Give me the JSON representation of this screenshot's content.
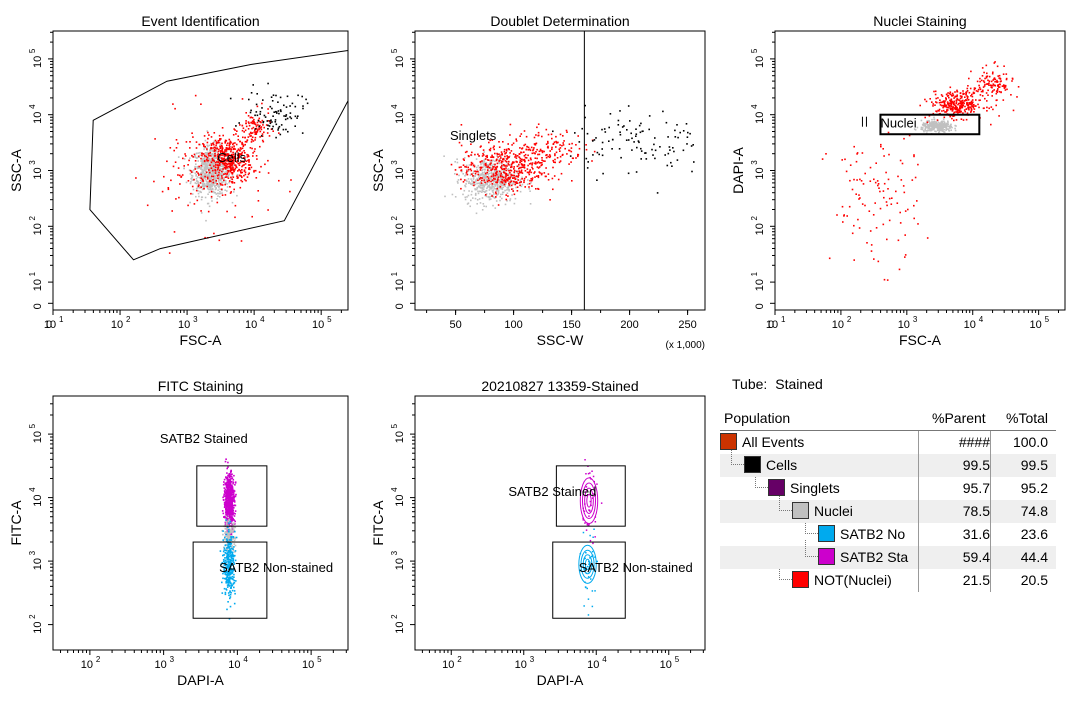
{
  "chart_data": [
    {
      "id": "p1",
      "type": "scatter",
      "title": "Event Identification",
      "xlabel": "FSC-A",
      "ylabel": "SSC-A",
      "xscale": "log",
      "yscale": "log",
      "xlim": [
        1,
        5.4
      ],
      "ylim": [
        0.5,
        5.5
      ],
      "xticks": [
        "0",
        "10",
        "10",
        "10",
        "10",
        "10"
      ],
      "xtick_exp": [
        "",
        "1",
        "2",
        "3",
        "4",
        "5"
      ],
      "yticks": [
        "0",
        "10",
        "10",
        "10",
        "10",
        "10"
      ],
      "ytick_exp": [
        "",
        "1",
        "2",
        "3",
        "4",
        "5"
      ],
      "gates": [
        {
          "name": "Cells",
          "shape": "polygon",
          "color": "#000000",
          "vertices": [
            [
              1.6,
              3.9
            ],
            [
              2.7,
              4.6
            ],
            [
              3.95,
              4.9
            ],
            [
              5.4,
              5.15
            ],
            [
              5.4,
              4.25
            ],
            [
              4.45,
              2.1
            ],
            [
              2.6,
              1.6
            ],
            [
              2.2,
              1.4
            ],
            [
              1.55,
              2.3
            ]
          ]
        }
      ],
      "clusters": [
        {
          "color": "#c0c0c0",
          "cx": 3.35,
          "cy": 3.0,
          "sx": 0.14,
          "sy": 0.22,
          "n": 700
        },
        {
          "color": "#ff0000",
          "cx": 3.6,
          "cy": 3.2,
          "sx": 0.18,
          "sy": 0.2,
          "n": 420
        },
        {
          "color": "#ff0000",
          "cx": 3.3,
          "cy": 3.0,
          "sx": 0.45,
          "sy": 0.5,
          "n": 150
        },
        {
          "color": "#ff0000",
          "cx": 4.0,
          "cy": 3.75,
          "sx": 0.12,
          "sy": 0.16,
          "n": 100
        },
        {
          "color": "#000000",
          "cx": 4.3,
          "cy": 4.05,
          "sx": 0.22,
          "sy": 0.2,
          "n": 90
        }
      ]
    },
    {
      "id": "p2",
      "type": "scatter",
      "title": "Doublet Determination",
      "xlabel": "SSC-W",
      "ylabel": "SSC-A",
      "xscale": "linear",
      "yscale": "log",
      "xlim": [
        15000,
        265000
      ],
      "ylim": [
        0.5,
        5.5
      ],
      "xnote": "(x 1,000)",
      "xticks": [
        "50",
        "100",
        "150",
        "200",
        "250"
      ],
      "yticks": [
        "0",
        "10",
        "10",
        "10",
        "10",
        "10"
      ],
      "ytick_exp": [
        "",
        "1",
        "2",
        "3",
        "4",
        "5"
      ],
      "gates": [
        {
          "name": "Singlets",
          "shape": "vline",
          "x": 161000,
          "color": "#000000"
        }
      ],
      "clusters": [
        {
          "color": "#c0c0c0",
          "cx": 80000,
          "cy": 2.85,
          "sx": 12000,
          "sy": 0.2,
          "n": 550
        },
        {
          "color": "#ff0000",
          "cx": 90000,
          "cy": 3.05,
          "sx": 18000,
          "sy": 0.22,
          "n": 420
        },
        {
          "color": "#ff0000",
          "cx": 128000,
          "cy": 3.4,
          "sx": 16000,
          "sy": 0.18,
          "n": 150
        },
        {
          "color": "#000000",
          "cx": 205000,
          "cy": 3.55,
          "sx": 30000,
          "sy": 0.3,
          "n": 110
        }
      ]
    },
    {
      "id": "p3",
      "type": "scatter",
      "title": "Nuclei Staining",
      "xlabel": "FSC-A",
      "ylabel": "DAPI-A",
      "xscale": "log",
      "yscale": "log",
      "xlim": [
        1,
        5.4
      ],
      "ylim": [
        0.5,
        5.5
      ],
      "xticks": [
        "0",
        "10",
        "10",
        "10",
        "10",
        "10"
      ],
      "xtick_exp": [
        "",
        "1",
        "2",
        "3",
        "4",
        "5"
      ],
      "yticks": [
        "0",
        "10",
        "10",
        "10",
        "10",
        "10"
      ],
      "ytick_exp": [
        "",
        "1",
        "2",
        "3",
        "4",
        "5"
      ],
      "gates": [
        {
          "name": "Nuclei",
          "shape": "rect",
          "x0": 2.6,
          "x1": 4.1,
          "y0": 3.65,
          "y1": 4.0,
          "color": "#000000"
        }
      ],
      "clusters": [
        {
          "color": "#c0c0c0",
          "cx": 3.45,
          "cy": 3.8,
          "sx": 0.12,
          "sy": 0.05,
          "n": 300
        },
        {
          "color": "#ff0000",
          "cx": 3.75,
          "cy": 4.2,
          "sx": 0.2,
          "sy": 0.12,
          "n": 320
        },
        {
          "color": "#ff0000",
          "cx": 4.3,
          "cy": 4.55,
          "sx": 0.15,
          "sy": 0.15,
          "n": 120
        },
        {
          "color": "#ff0000",
          "cx": 2.5,
          "cy": 2.5,
          "sx": 0.35,
          "sy": 0.6,
          "n": 110
        }
      ]
    },
    {
      "id": "p4",
      "type": "scatter",
      "title": "FITC Staining",
      "xlabel": "DAPI-A",
      "ylabel": "FITC-A",
      "xscale": "log",
      "yscale": "log",
      "xlim": [
        1.5,
        5.5
      ],
      "ylim": [
        1.6,
        5.6
      ],
      "xticks": [
        "10",
        "10",
        "10",
        "10"
      ],
      "xtick_exp": [
        "2",
        "3",
        "4",
        "5"
      ],
      "yticks": [
        "10",
        "10",
        "10",
        "10"
      ],
      "ytick_exp": [
        "2",
        "3",
        "4",
        "5"
      ],
      "gates": [
        {
          "name": "SATB2 Stained",
          "shape": "rect",
          "x0": 3.45,
          "x1": 4.4,
          "y0": 3.55,
          "y1": 4.5,
          "color": "#000000"
        },
        {
          "name": "SATB2 Non-stained",
          "shape": "rect",
          "x0": 3.4,
          "x1": 4.4,
          "y0": 2.1,
          "y1": 3.3,
          "color": "#000000"
        }
      ],
      "clusters": [
        {
          "color": "#cc00cc",
          "cx": 3.88,
          "cy": 3.95,
          "sx": 0.035,
          "sy": 0.22,
          "n": 600
        },
        {
          "color": "#c0c0c0",
          "cx": 3.88,
          "cy": 3.4,
          "sx": 0.04,
          "sy": 0.12,
          "n": 150
        },
        {
          "color": "#00aaee",
          "cx": 3.88,
          "cy": 2.95,
          "sx": 0.04,
          "sy": 0.25,
          "n": 320
        }
      ]
    },
    {
      "id": "p5",
      "type": "contour",
      "title": "20210827 13359-Stained",
      "xlabel": "DAPI-A",
      "ylabel": "FITC-A",
      "xscale": "log",
      "yscale": "log",
      "xlim": [
        1.5,
        5.5
      ],
      "ylim": [
        1.6,
        5.6
      ],
      "xticks": [
        "10",
        "10",
        "10",
        "10"
      ],
      "xtick_exp": [
        "2",
        "3",
        "4",
        "5"
      ],
      "yticks": [
        "10",
        "10",
        "10",
        "10"
      ],
      "ytick_exp": [
        "2",
        "3",
        "4",
        "5"
      ],
      "gates": [
        {
          "name": "SATB2 Stained",
          "shape": "rect",
          "x0": 3.45,
          "x1": 4.4,
          "y0": 3.55,
          "y1": 4.5,
          "color": "#000000"
        },
        {
          "name": "SATB2 Non-stained",
          "shape": "rect",
          "x0": 3.4,
          "x1": 4.4,
          "y0": 2.1,
          "y1": 3.3,
          "color": "#000000"
        }
      ],
      "contours": [
        {
          "color": "#cc00cc",
          "cx": 3.9,
          "cy": 3.95,
          "rx": [
            0.03,
            0.06,
            0.09,
            0.12
          ],
          "ry": [
            0.1,
            0.2,
            0.28,
            0.36
          ]
        },
        {
          "color": "#00aaee",
          "cx": 3.88,
          "cy": 2.95,
          "rx": [
            0.03,
            0.06,
            0.09,
            0.12
          ],
          "ry": [
            0.08,
            0.15,
            0.22,
            0.3
          ]
        }
      ],
      "outliers": [
        {
          "color": "#cc00cc",
          "cx": 3.9,
          "cy": 3.95,
          "sx": 0.06,
          "sy": 0.35,
          "n": 40
        },
        {
          "color": "#00aaee",
          "cx": 3.88,
          "cy": 2.9,
          "sx": 0.06,
          "sy": 0.3,
          "n": 40
        }
      ]
    }
  ],
  "hierarchy": {
    "tube_label": "Tube:",
    "tube_name": "Stained",
    "headers": {
      "population": "Population",
      "parent": "%Parent",
      "total": "%Total"
    },
    "rows": [
      {
        "name": "All Events",
        "parent": "####",
        "total": "100.0",
        "color": "#cc3300",
        "level": 0
      },
      {
        "name": "Cells",
        "parent": "99.5",
        "total": "99.5",
        "color": "#000000",
        "level": 1
      },
      {
        "name": "Singlets",
        "parent": "95.7",
        "total": "95.2",
        "color": "#660066",
        "level": 2
      },
      {
        "name": "Nuclei",
        "parent": "78.5",
        "total": "74.8",
        "color": "#c0c0c0",
        "level": 3
      },
      {
        "name": "SATB2 No",
        "parent": "31.6",
        "total": "23.6",
        "color": "#00aaee",
        "level": 4
      },
      {
        "name": "SATB2 Sta",
        "parent": "59.4",
        "total": "44.4",
        "color": "#cc00cc",
        "level": 4
      },
      {
        "name": "NOT(Nuclei)",
        "parent": "21.5",
        "total": "20.5",
        "color": "#ff0000",
        "level": 3
      }
    ]
  }
}
